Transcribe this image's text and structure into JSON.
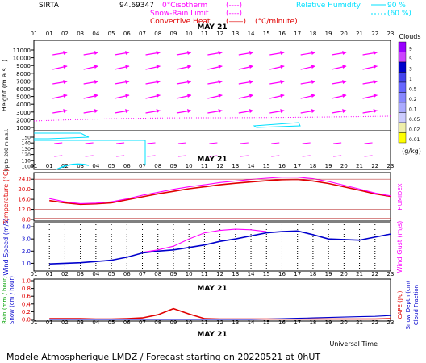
{
  "header": {
    "site": "SIRTA",
    "coords": "94.69347",
    "legend_zero": "0°Cisotherm",
    "legend_zero_sym": "(----)",
    "legend_snow": "Snow-Rain Limit",
    "legend_snow_sym": "(----)",
    "legend_conv": "Convective Heat",
    "legend_conv_sym": "(——)",
    "legend_conv_unit": "(°C/minute)",
    "legend_rh": "Relative Humidity",
    "legend_rh_90": "90 %",
    "legend_rh_60": "(60 %)"
  },
  "colors": {
    "magenta": "#ff00ff",
    "red": "#e00000",
    "blue": "#0000cc",
    "cyan": "#00e0ff",
    "grey": "#808080"
  },
  "hours": [
    "01",
    "02",
    "03",
    "04",
    "05",
    "06",
    "07",
    "08",
    "09",
    "10",
    "11",
    "12",
    "13",
    "14",
    "15",
    "16",
    "17",
    "18",
    "19",
    "20",
    "21",
    "22",
    "23"
  ],
  "date_label": "MAY 21",
  "footer": {
    "universal_time": "Universal Time",
    "forecast": "Modele Atmospherique LMDZ / Forecast starting on 20220521 at 0hUT"
  },
  "chart_data": [
    {
      "type": "wind-barbs",
      "name": "upper-air",
      "ylabel_upper": "Height (m a.s.l.)",
      "ylabel_lower": "Up to 200 m a.s.l.",
      "yticks_upper": [
        "11000",
        "10000",
        "9000",
        "8000",
        "7000",
        "6000",
        "5000",
        "4000",
        "3000",
        "2000",
        "1000"
      ],
      "yticks_lower": [
        "150",
        "140",
        "130",
        "120",
        "110",
        "100"
      ],
      "cloud_scale": {
        "title": "Clouds",
        "unit": "(g/kg)",
        "levels": [
          "9",
          "5",
          "3",
          "1",
          "0.5",
          "0.2",
          "0.1",
          "0.05",
          "0.02",
          "0.01"
        ]
      }
    },
    {
      "type": "line",
      "name": "temperature",
      "ylabel": "Temperature (°C)",
      "ylabel_right": "HUMIDEX",
      "yticks": [
        "24.0",
        "20.0",
        "16.0",
        "12.0",
        "8.0"
      ],
      "ylim": [
        8,
        26
      ],
      "x": [
        1,
        2,
        3,
        4,
        5,
        6,
        7,
        8,
        9,
        10,
        11,
        12,
        13,
        14,
        15,
        16,
        17,
        18,
        19,
        20,
        21,
        22,
        23
      ],
      "series": [
        {
          "values": [
            15.5,
            14.6,
            14.0,
            14.2,
            14.6,
            15.8,
            17.0,
            18.2,
            19.2,
            20.2,
            21.0,
            21.8,
            22.4,
            22.9,
            23.4,
            23.8,
            23.9,
            23.3,
            22.3,
            21.0,
            19.6,
            18.2,
            17.2
          ]
        },
        {
          "values": [
            16.3,
            15.0,
            14.3,
            14.5,
            15.0,
            16.2,
            17.6,
            18.8,
            20.0,
            21.0,
            21.8,
            22.7,
            23.3,
            23.9,
            24.4,
            24.8,
            24.8,
            24.2,
            23.1,
            21.6,
            20.1,
            18.5,
            17.4
          ]
        }
      ]
    },
    {
      "type": "line",
      "name": "wind",
      "ylabel": "Wind Speed (m/s)",
      "ylabel_right": "Wind Gust (m/s)",
      "yticks": [
        "4.0",
        "3.0",
        "2.0",
        "1.0"
      ],
      "ylim": [
        0.5,
        4.2
      ],
      "x": [
        1,
        2,
        3,
        4,
        5,
        6,
        7,
        8,
        9,
        10,
        11,
        12,
        13,
        14,
        15,
        16,
        17,
        18,
        19,
        20,
        21,
        22,
        23
      ],
      "series": [
        {
          "values": [
            0.95,
            1.0,
            1.05,
            1.15,
            1.25,
            1.5,
            1.85,
            2.0,
            2.1,
            2.3,
            2.5,
            2.8,
            3.0,
            3.25,
            3.5,
            3.6,
            3.65,
            3.35,
            3.0,
            2.95,
            2.9,
            3.15,
            3.4
          ]
        },
        {
          "values": [
            null,
            null,
            null,
            null,
            null,
            null,
            1.9,
            2.1,
            2.4,
            3.0,
            3.5,
            3.7,
            3.8,
            3.75,
            3.6,
            null,
            null,
            null,
            null,
            null,
            null,
            null,
            null
          ]
        }
      ]
    },
    {
      "type": "line",
      "name": "precipitation",
      "ylabel": "Rain (mm / hour)",
      "ylabel2": "Snow (cm / hour)",
      "ylabel_right": "CAPE (J/g)",
      "ylabel_right2": "Snow Depth (cm)",
      "ylabel_right3": "Cloud Fraction",
      "yticks": [
        "1.0",
        "0.8",
        "0.6",
        "0.4",
        "0.2",
        "0.0"
      ],
      "ylim": [
        0,
        1.0
      ],
      "x": [
        1,
        2,
        3,
        4,
        5,
        6,
        7,
        8,
        9,
        10,
        11,
        12,
        13,
        14,
        15,
        16,
        17,
        18,
        19,
        20,
        21,
        22,
        23
      ],
      "series": [
        {
          "values": [
            0.02,
            0.02,
            0.02,
            0.01,
            0.01,
            0.02,
            0.04,
            0.12,
            0.28,
            0.14,
            0.02,
            0.01,
            0.01,
            0.01,
            0.01,
            0.01,
            0.01,
            0.01,
            0.01,
            0.01,
            0.01,
            0.01,
            0.02
          ]
        },
        {
          "values": [
            0.0,
            0.0,
            0.0,
            0.0,
            0.0,
            0.0,
            0.0,
            0.0,
            0.0,
            0.0,
            0.0,
            0.0,
            0.0,
            0.0,
            0.01,
            0.02,
            0.03,
            0.04,
            0.05,
            0.06,
            0.07,
            0.08,
            0.1
          ]
        }
      ]
    }
  ]
}
